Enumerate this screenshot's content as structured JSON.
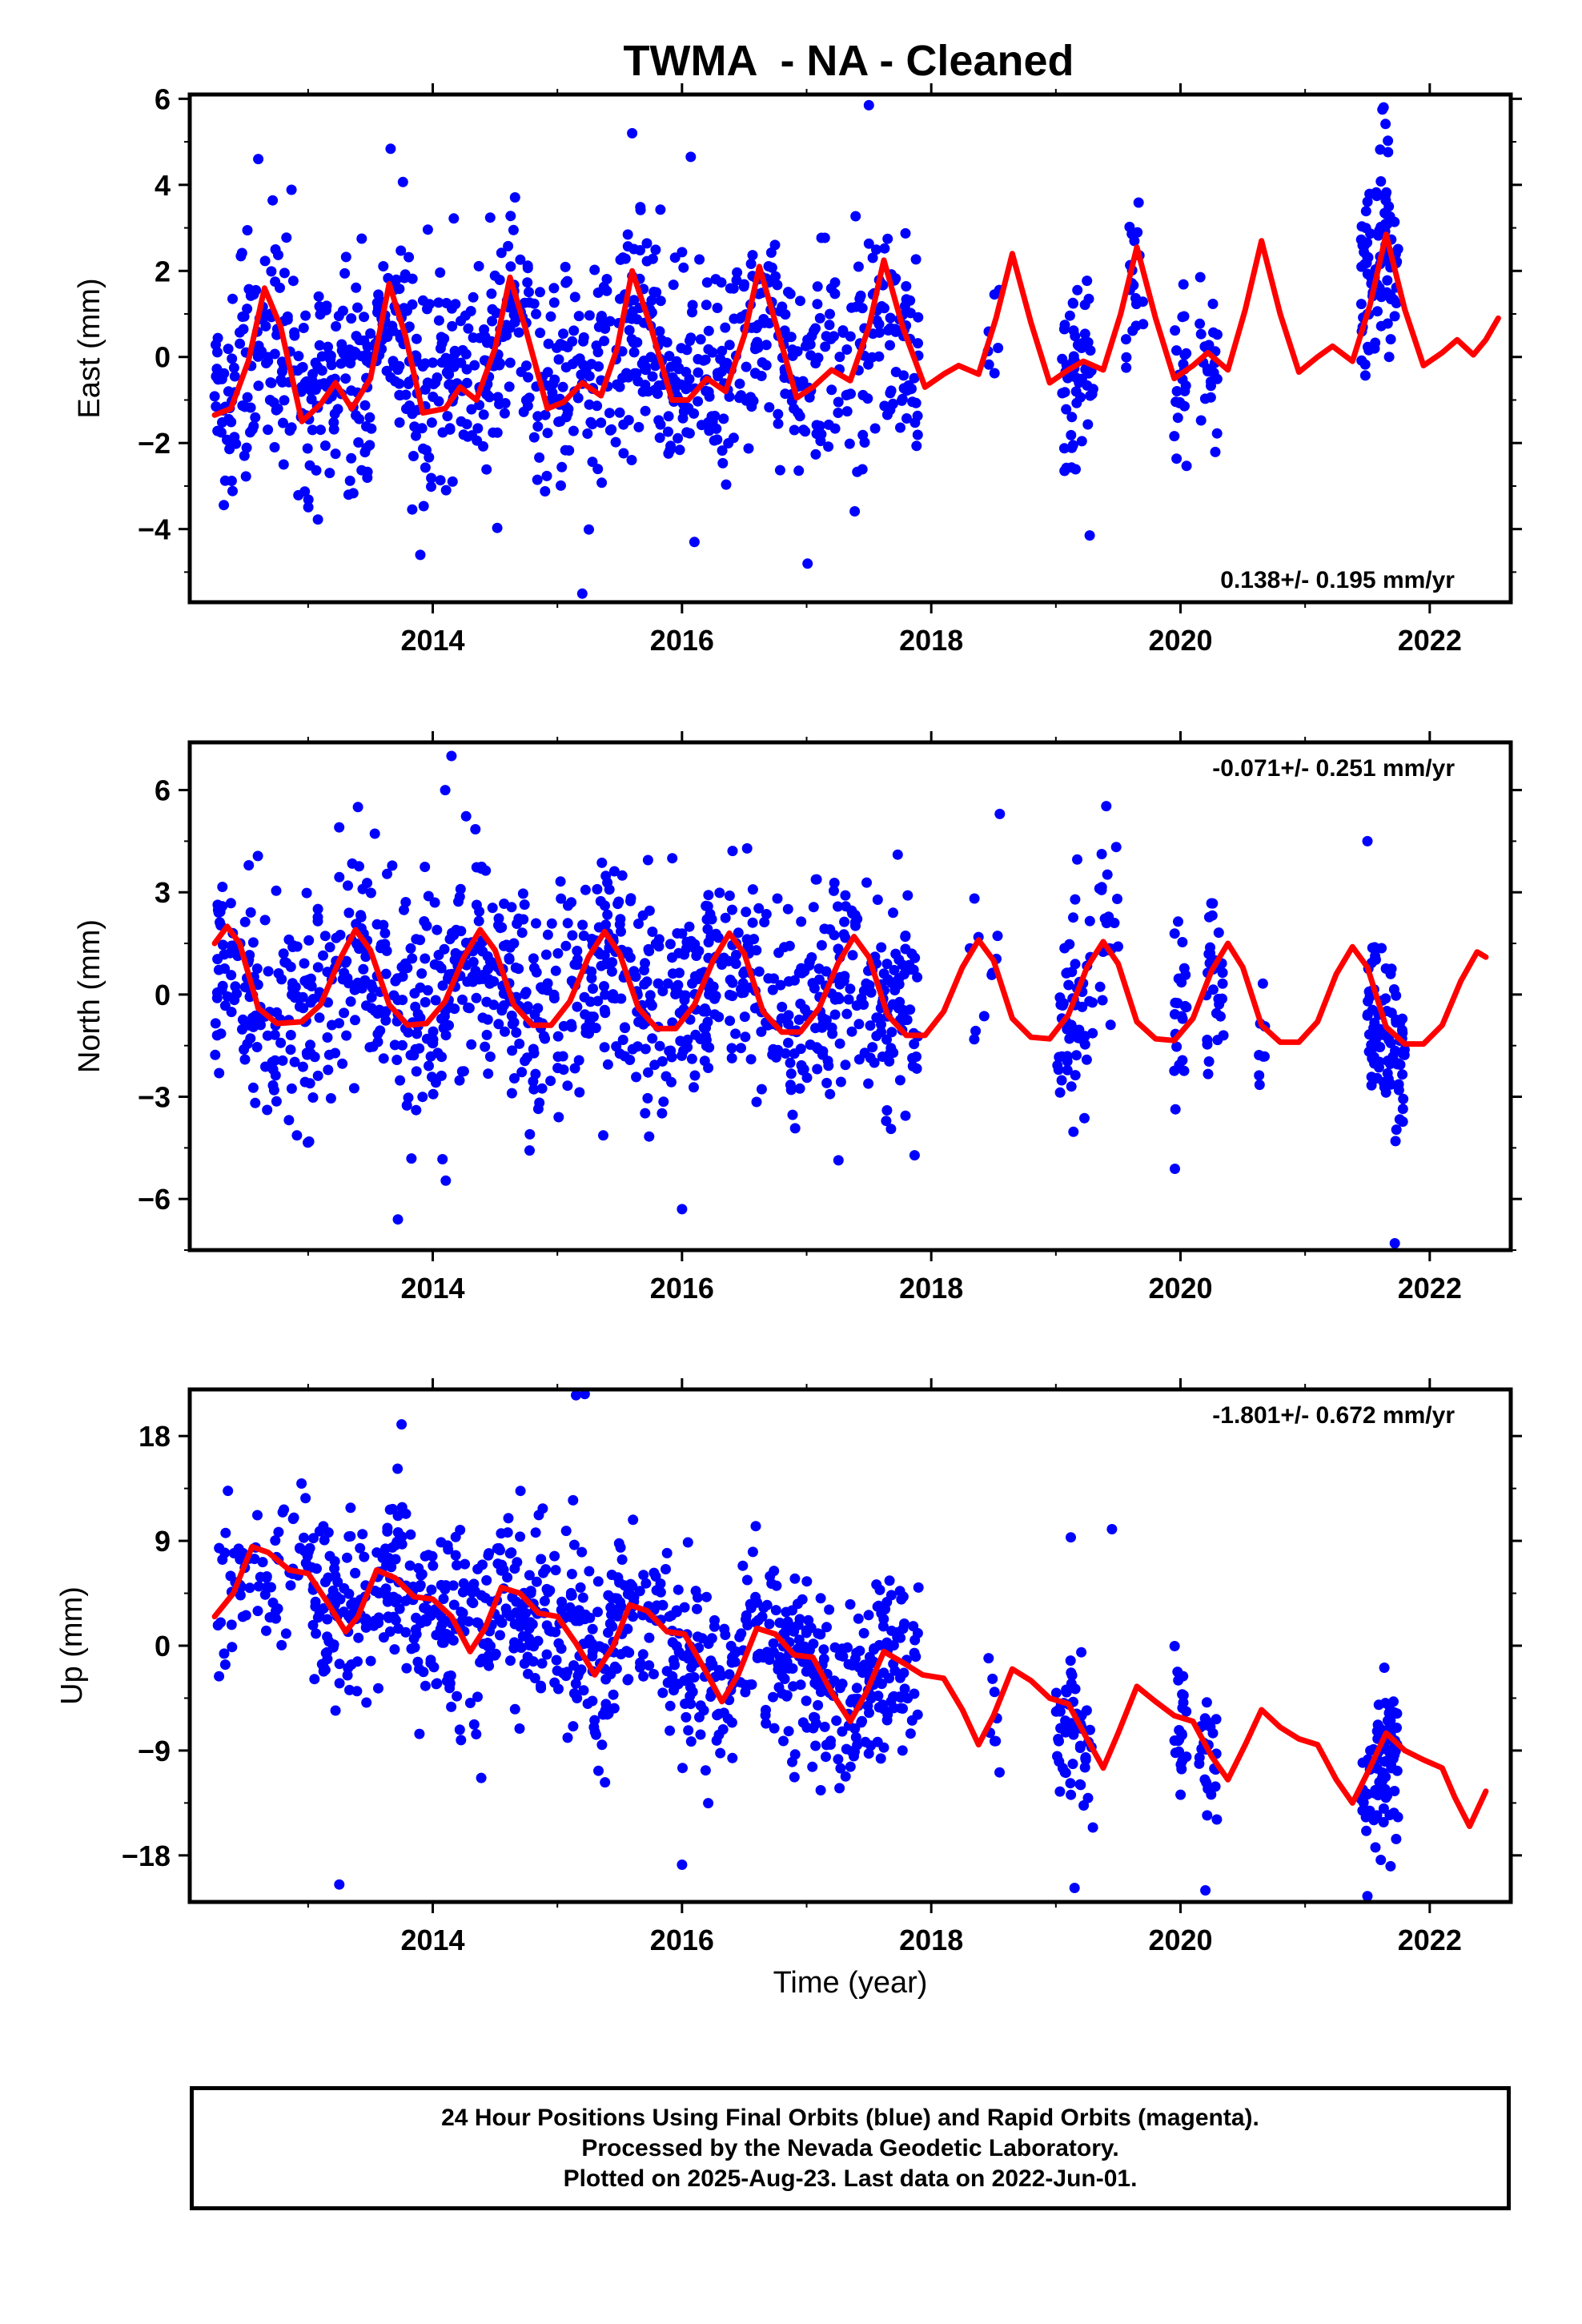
{
  "title": "TWMA  - NA - Cleaned",
  "xlabel": "Time (year)",
  "footer": {
    "line1": "24 Hour Positions Using Final Orbits (blue) and Rapid Orbits (magenta).",
    "line2": "Processed by the Nevada Geodetic Laboratory.",
    "line3": "Plotted on 2025-Aug-23. Last data on 2022-Jun-01."
  },
  "colors": {
    "points": "#0000ff",
    "model": "#ff0000",
    "frame": "#000000"
  },
  "chart_data": [
    {
      "type": "scatter",
      "name": "east",
      "ylabel": "East (mm)",
      "xlim": [
        2012.05,
        2022.65
      ],
      "ylim": [
        -5.7,
        6.1
      ],
      "yticks": [
        -4,
        -2,
        0,
        2,
        4,
        6
      ],
      "xticks": [
        2014,
        2016,
        2018,
        2020,
        2022
      ],
      "rate_label": "0.138+/- 0.195 mm/yr",
      "rate_position": "bottom-right",
      "model": [
        [
          2012.25,
          -1.35
        ],
        [
          2012.38,
          -1.2
        ],
        [
          2012.52,
          -0.1
        ],
        [
          2012.65,
          1.6
        ],
        [
          2012.78,
          0.7
        ],
        [
          2012.95,
          -1.5
        ],
        [
          2013.1,
          -1.1
        ],
        [
          2013.22,
          -0.6
        ],
        [
          2013.35,
          -1.2
        ],
        [
          2013.5,
          -0.5
        ],
        [
          2013.65,
          1.7
        ],
        [
          2013.78,
          0.5
        ],
        [
          2013.92,
          -1.3
        ],
        [
          2014.1,
          -1.2
        ],
        [
          2014.22,
          -0.7
        ],
        [
          2014.35,
          -1.0
        ],
        [
          2014.5,
          0.2
        ],
        [
          2014.62,
          1.85
        ],
        [
          2014.75,
          0.6
        ],
        [
          2014.92,
          -1.2
        ],
        [
          2015.05,
          -1.05
        ],
        [
          2015.2,
          -0.6
        ],
        [
          2015.35,
          -0.9
        ],
        [
          2015.48,
          0.2
        ],
        [
          2015.6,
          2.0
        ],
        [
          2015.75,
          0.7
        ],
        [
          2015.92,
          -1.0
        ],
        [
          2016.05,
          -1.0
        ],
        [
          2016.2,
          -0.5
        ],
        [
          2016.35,
          -0.8
        ],
        [
          2016.5,
          0.5
        ],
        [
          2016.62,
          2.1
        ],
        [
          2016.75,
          0.8
        ],
        [
          2016.92,
          -0.95
        ],
        [
          2017.05,
          -0.7
        ],
        [
          2017.2,
          -0.3
        ],
        [
          2017.35,
          -0.55
        ],
        [
          2017.5,
          0.7
        ],
        [
          2017.62,
          2.25
        ],
        [
          2017.77,
          0.7
        ],
        [
          2017.95,
          -0.7
        ],
        [
          2018.1,
          -0.4
        ],
        [
          2018.22,
          -0.2
        ],
        [
          2018.38,
          -0.4
        ],
        [
          2018.52,
          0.9
        ],
        [
          2018.65,
          2.4
        ],
        [
          2018.8,
          0.8
        ],
        [
          2018.95,
          -0.6
        ],
        [
          2019.1,
          -0.3
        ],
        [
          2019.22,
          -0.1
        ],
        [
          2019.38,
          -0.3
        ],
        [
          2019.52,
          1.0
        ],
        [
          2019.65,
          2.55
        ],
        [
          2019.8,
          0.9
        ],
        [
          2019.95,
          -0.5
        ],
        [
          2020.1,
          -0.2
        ],
        [
          2020.22,
          0.1
        ],
        [
          2020.38,
          -0.3
        ],
        [
          2020.52,
          1.1
        ],
        [
          2020.65,
          2.7
        ],
        [
          2020.8,
          1.0
        ],
        [
          2020.95,
          -0.35
        ],
        [
          2021.1,
          0.0
        ],
        [
          2021.22,
          0.25
        ],
        [
          2021.38,
          -0.1
        ],
        [
          2021.52,
          1.2
        ],
        [
          2021.65,
          2.85
        ],
        [
          2021.8,
          1.1
        ],
        [
          2021.95,
          -0.2
        ],
        [
          2022.1,
          0.1
        ],
        [
          2022.22,
          0.4
        ],
        [
          2022.35,
          0.05
        ],
        [
          2022.45,
          0.4
        ],
        [
          2022.55,
          0.9
        ]
      ],
      "clusters": [
        {
          "x0": 2012.25,
          "x1": 2017.9,
          "center": 0.0,
          "spread": 1.25,
          "count": 1000
        },
        {
          "x0": 2018.45,
          "x1": 2018.55,
          "center": 1.0,
          "spread": 1.0,
          "count": 8
        },
        {
          "x0": 2019.05,
          "x1": 2019.3,
          "center": -0.8,
          "spread": 1.2,
          "count": 60
        },
        {
          "x0": 2019.55,
          "x1": 2019.7,
          "center": 1.3,
          "spread": 0.9,
          "count": 20
        },
        {
          "x0": 2019.95,
          "x1": 2020.05,
          "center": -0.9,
          "spread": 1.0,
          "count": 22
        },
        {
          "x0": 2020.15,
          "x1": 2020.3,
          "center": -0.8,
          "spread": 1.0,
          "count": 25
        },
        {
          "x0": 2021.45,
          "x1": 2021.75,
          "center": 2.5,
          "spread": 1.3,
          "count": 90
        }
      ],
      "highlights": [
        [
          2012.6,
          4.6
        ],
        [
          2015.6,
          5.2
        ],
        [
          2016.07,
          4.65
        ],
        [
          2017.5,
          5.85
        ],
        [
          2021.62,
          5.75
        ],
        [
          2015.2,
          -5.5
        ],
        [
          2013.9,
          -4.6
        ],
        [
          2016.1,
          -4.3
        ]
      ]
    },
    {
      "type": "scatter",
      "name": "north",
      "ylabel": "North (mm)",
      "xlim": [
        2012.05,
        2022.65
      ],
      "ylim": [
        -7.5,
        7.4
      ],
      "yticks": [
        -6,
        -3,
        0,
        3,
        6
      ],
      "xticks": [
        2014,
        2016,
        2018,
        2020,
        2022
      ],
      "rate_label": "-0.071+/- 0.251 mm/yr",
      "rate_position": "top-right",
      "model": [
        [
          2012.25,
          1.5
        ],
        [
          2012.35,
          2.0
        ],
        [
          2012.45,
          1.5
        ],
        [
          2012.6,
          -0.4
        ],
        [
          2012.75,
          -0.85
        ],
        [
          2012.95,
          -0.8
        ],
        [
          2013.1,
          -0.3
        ],
        [
          2013.25,
          1.0
        ],
        [
          2013.38,
          1.9
        ],
        [
          2013.5,
          1.3
        ],
        [
          2013.65,
          -0.3
        ],
        [
          2013.8,
          -0.9
        ],
        [
          2013.95,
          -0.85
        ],
        [
          2014.1,
          -0.2
        ],
        [
          2014.25,
          1.1
        ],
        [
          2014.38,
          1.9
        ],
        [
          2014.5,
          1.3
        ],
        [
          2014.65,
          -0.3
        ],
        [
          2014.8,
          -0.9
        ],
        [
          2014.95,
          -0.9
        ],
        [
          2015.1,
          -0.2
        ],
        [
          2015.25,
          1.1
        ],
        [
          2015.38,
          1.85
        ],
        [
          2015.5,
          1.2
        ],
        [
          2015.65,
          -0.4
        ],
        [
          2015.8,
          -1.0
        ],
        [
          2015.95,
          -1.0
        ],
        [
          2016.1,
          -0.3
        ],
        [
          2016.25,
          1.0
        ],
        [
          2016.38,
          1.8
        ],
        [
          2016.5,
          1.2
        ],
        [
          2016.65,
          -0.5
        ],
        [
          2016.8,
          -1.1
        ],
        [
          2016.95,
          -1.1
        ],
        [
          2017.1,
          -0.4
        ],
        [
          2017.25,
          0.9
        ],
        [
          2017.38,
          1.7
        ],
        [
          2017.5,
          1.1
        ],
        [
          2017.65,
          -0.6
        ],
        [
          2017.8,
          -1.2
        ],
        [
          2017.95,
          -1.2
        ],
        [
          2018.1,
          -0.5
        ],
        [
          2018.25,
          0.8
        ],
        [
          2018.38,
          1.6
        ],
        [
          2018.5,
          1.0
        ],
        [
          2018.65,
          -0.7
        ],
        [
          2018.8,
          -1.25
        ],
        [
          2018.95,
          -1.3
        ],
        [
          2019.1,
          -0.6
        ],
        [
          2019.25,
          0.8
        ],
        [
          2019.38,
          1.55
        ],
        [
          2019.5,
          0.9
        ],
        [
          2019.65,
          -0.8
        ],
        [
          2019.8,
          -1.3
        ],
        [
          2019.95,
          -1.35
        ],
        [
          2020.1,
          -0.7
        ],
        [
          2020.25,
          0.7
        ],
        [
          2020.38,
          1.5
        ],
        [
          2020.5,
          0.8
        ],
        [
          2020.65,
          -0.9
        ],
        [
          2020.8,
          -1.4
        ],
        [
          2020.95,
          -1.4
        ],
        [
          2021.1,
          -0.8
        ],
        [
          2021.25,
          0.6
        ],
        [
          2021.38,
          1.4
        ],
        [
          2021.5,
          0.8
        ],
        [
          2021.65,
          -0.95
        ],
        [
          2021.8,
          -1.45
        ],
        [
          2021.95,
          -1.45
        ],
        [
          2022.1,
          -0.9
        ],
        [
          2022.25,
          0.4
        ],
        [
          2022.38,
          1.25
        ],
        [
          2022.45,
          1.1
        ]
      ],
      "clusters": [
        {
          "x0": 2012.25,
          "x1": 2017.9,
          "center": 0.0,
          "spread": 1.7,
          "count": 1000
        },
        {
          "x0": 2018.3,
          "x1": 2018.55,
          "center": 1.0,
          "spread": 1.5,
          "count": 10
        },
        {
          "x0": 2019.0,
          "x1": 2019.3,
          "center": -1.0,
          "spread": 1.5,
          "count": 60
        },
        {
          "x0": 2019.35,
          "x1": 2019.5,
          "center": 1.5,
          "spread": 1.5,
          "count": 20
        },
        {
          "x0": 2019.95,
          "x1": 2020.05,
          "center": -1.0,
          "spread": 1.2,
          "count": 22
        },
        {
          "x0": 2020.2,
          "x1": 2020.35,
          "center": 0.5,
          "spread": 1.5,
          "count": 30
        },
        {
          "x0": 2020.6,
          "x1": 2020.7,
          "center": -1.5,
          "spread": 1.0,
          "count": 8
        },
        {
          "x0": 2021.5,
          "x1": 2021.8,
          "center": -2.2,
          "spread": 1.5,
          "count": 90
        }
      ],
      "highlights": [
        [
          2014.15,
          7.0
        ],
        [
          2014.1,
          6.0
        ],
        [
          2013.4,
          5.5
        ],
        [
          2013.72,
          -6.6
        ],
        [
          2016.0,
          -6.3
        ],
        [
          2021.72,
          -7.3
        ],
        [
          2018.55,
          5.3
        ],
        [
          2021.5,
          4.5
        ]
      ]
    },
    {
      "type": "scatter",
      "name": "up",
      "ylabel": "Up (mm)",
      "xlim": [
        2012.05,
        2022.65
      ],
      "ylim": [
        -22.0,
        22.0
      ],
      "yticks": [
        -18,
        -9,
        0,
        9,
        18
      ],
      "xticks": [
        2014,
        2016,
        2018,
        2020,
        2022
      ],
      "rate_label": "-1.801+/- 0.672 mm/yr",
      "rate_position": "top-right",
      "model": [
        [
          2012.25,
          2.5
        ],
        [
          2012.4,
          4.5
        ],
        [
          2012.55,
          8.5
        ],
        [
          2012.68,
          8.0
        ],
        [
          2012.85,
          6.5
        ],
        [
          2013.0,
          6.2
        ],
        [
          2013.15,
          3.8
        ],
        [
          2013.3,
          1.2
        ],
        [
          2013.4,
          2.5
        ],
        [
          2013.55,
          6.5
        ],
        [
          2013.7,
          5.8
        ],
        [
          2013.85,
          4.2
        ],
        [
          2014.0,
          4.0
        ],
        [
          2014.15,
          2.5
        ],
        [
          2014.3,
          -0.5
        ],
        [
          2014.42,
          1.5
        ],
        [
          2014.55,
          5.0
        ],
        [
          2014.7,
          4.5
        ],
        [
          2014.85,
          2.8
        ],
        [
          2015.0,
          2.5
        ],
        [
          2015.15,
          0.2
        ],
        [
          2015.3,
          -2.5
        ],
        [
          2015.45,
          0.0
        ],
        [
          2015.58,
          3.5
        ],
        [
          2015.72,
          3.0
        ],
        [
          2015.88,
          1.2
        ],
        [
          2016.02,
          1.0
        ],
        [
          2016.18,
          -2.0
        ],
        [
          2016.32,
          -4.8
        ],
        [
          2016.45,
          -2.5
        ],
        [
          2016.6,
          1.5
        ],
        [
          2016.75,
          1.0
        ],
        [
          2016.9,
          -0.8
        ],
        [
          2017.05,
          -1.0
        ],
        [
          2017.2,
          -4.0
        ],
        [
          2017.35,
          -6.5
        ],
        [
          2017.48,
          -4.0
        ],
        [
          2017.62,
          -0.5
        ],
        [
          2017.78,
          -1.5
        ],
        [
          2017.93,
          -2.5
        ],
        [
          2018.1,
          -2.8
        ],
        [
          2018.25,
          -5.5
        ],
        [
          2018.38,
          -8.5
        ],
        [
          2018.5,
          -6.0
        ],
        [
          2018.65,
          -2.0
        ],
        [
          2018.8,
          -3.0
        ],
        [
          2018.95,
          -4.5
        ],
        [
          2019.1,
          -5.0
        ],
        [
          2019.25,
          -8.0
        ],
        [
          2019.38,
          -10.5
        ],
        [
          2019.5,
          -7.5
        ],
        [
          2019.65,
          -3.5
        ],
        [
          2019.8,
          -4.8
        ],
        [
          2019.95,
          -6.0
        ],
        [
          2020.1,
          -6.5
        ],
        [
          2020.25,
          -9.5
        ],
        [
          2020.38,
          -11.5
        ],
        [
          2020.52,
          -8.5
        ],
        [
          2020.65,
          -5.5
        ],
        [
          2020.8,
          -7.0
        ],
        [
          2020.95,
          -8.0
        ],
        [
          2021.1,
          -8.5
        ],
        [
          2021.25,
          -11.5
        ],
        [
          2021.38,
          -13.5
        ],
        [
          2021.52,
          -10.5
        ],
        [
          2021.65,
          -7.5
        ],
        [
          2021.8,
          -9.0
        ],
        [
          2021.95,
          -9.8
        ],
        [
          2022.1,
          -10.5
        ],
        [
          2022.2,
          -13.0
        ],
        [
          2022.32,
          -15.5
        ],
        [
          2022.45,
          -12.5
        ]
      ],
      "clusters": [
        {
          "x0": 2012.25,
          "x1": 2013.0,
          "center": 6.0,
          "spread": 3.5,
          "count": 70
        },
        {
          "x0": 2013.0,
          "x1": 2014.0,
          "center": 3.5,
          "spread": 4.0,
          "count": 180
        },
        {
          "x0": 2014.0,
          "x1": 2015.0,
          "center": 3.0,
          "spread": 4.0,
          "count": 180
        },
        {
          "x0": 2015.0,
          "x1": 2016.0,
          "center": 0.5,
          "spread": 4.0,
          "count": 170
        },
        {
          "x0": 2016.0,
          "x1": 2017.0,
          "center": -1.5,
          "spread": 4.0,
          "count": 170
        },
        {
          "x0": 2017.0,
          "x1": 2017.9,
          "center": -4.5,
          "spread": 4.0,
          "count": 170
        },
        {
          "x0": 2018.45,
          "x1": 2018.55,
          "center": -3.0,
          "spread": 3.0,
          "count": 8
        },
        {
          "x0": 2019.0,
          "x1": 2019.3,
          "center": -10.0,
          "spread": 3.5,
          "count": 60
        },
        {
          "x0": 2019.95,
          "x1": 2020.05,
          "center": -8.0,
          "spread": 3.0,
          "count": 22
        },
        {
          "x0": 2020.15,
          "x1": 2020.3,
          "center": -10.0,
          "spread": 3.0,
          "count": 25
        },
        {
          "x0": 2021.45,
          "x1": 2021.75,
          "center": -10.5,
          "spread": 3.5,
          "count": 90
        }
      ],
      "highlights": [
        [
          2015.15,
          21.5
        ],
        [
          2015.22,
          21.6
        ],
        [
          2013.75,
          19.0
        ],
        [
          2013.25,
          -20.5
        ],
        [
          2021.5,
          -21.5
        ],
        [
          2016.0,
          -18.8
        ],
        [
          2019.15,
          -20.8
        ],
        [
          2020.2,
          -21.0
        ],
        [
          2019.45,
          10.0
        ],
        [
          2019.12,
          9.3
        ]
      ]
    }
  ]
}
